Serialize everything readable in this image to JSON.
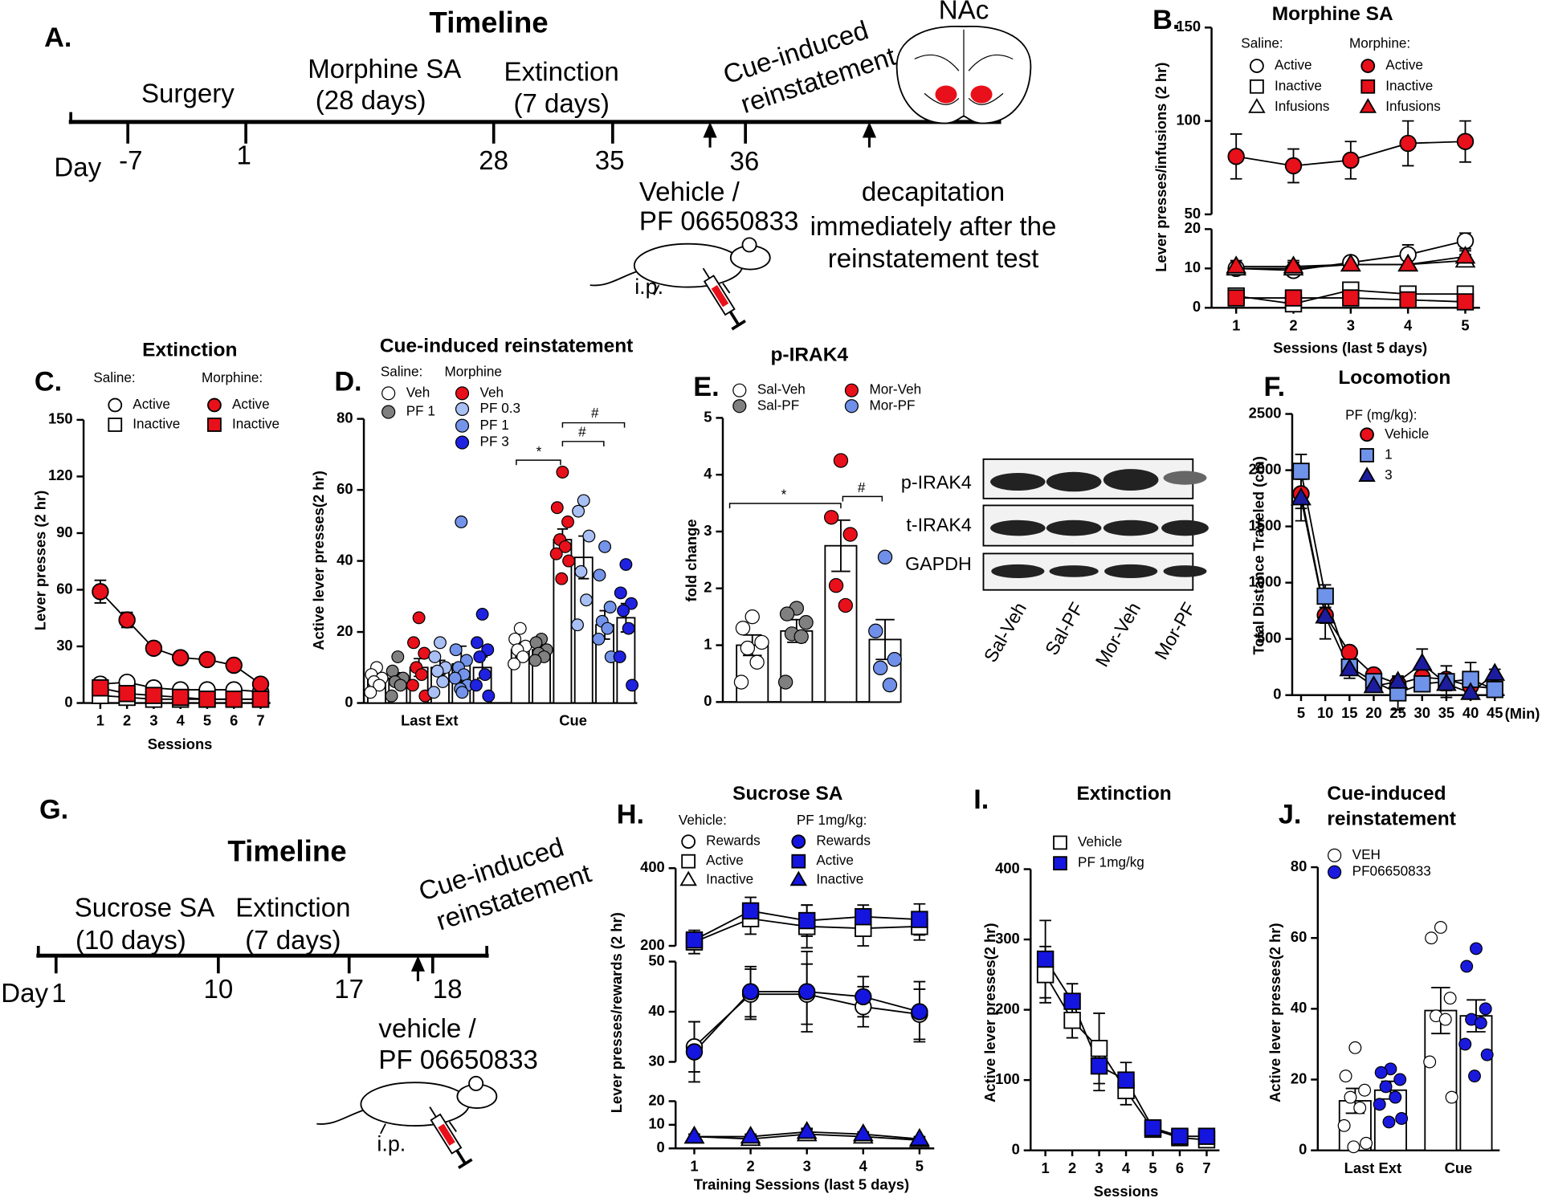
{
  "timelines": [
    {
      "panel_label": "A.",
      "title": "Timeline",
      "day_label": "Day",
      "days": [
        -7,
        1,
        28,
        35,
        36
      ],
      "phases": [
        [
          "Surgery"
        ],
        [
          "Morphine SA",
          "(28 days)"
        ],
        [
          "Extinction",
          "(7 days)"
        ]
      ],
      "test": [
        "Cue-induced",
        "reinstatement"
      ],
      "region": "NAc",
      "treatment": [
        "Vehicle /",
        "PF 06650833"
      ],
      "route": "i.p.",
      "endpoint": [
        "decapitation",
        "immediately after the",
        "reinstatement test"
      ]
    },
    {
      "panel_label": "G.",
      "title": "Timeline",
      "day_label": "Day",
      "days": [
        1,
        10,
        17,
        18
      ],
      "phases": [
        [
          "Sucrose SA",
          "(10 days)"
        ],
        [
          "Extinction",
          "(7 days)"
        ]
      ],
      "test": [
        "Cue-induced",
        "reinstatement"
      ],
      "treatment": [
        "vehicle /",
        "PF 06650833"
      ],
      "route": "i.p."
    }
  ],
  "blot": {
    "rows": [
      "p-IRAK4",
      "t-IRAK4",
      "GAPDH"
    ],
    "lanes": [
      "Sal-Veh",
      "Sal-PF",
      "Mor-Veh",
      "Mor-PF"
    ]
  },
  "chart_data": [
    {
      "type": "line",
      "panel_label": "B.",
      "title": "Morphine SA",
      "ylabel": "Lever presses/infusions (2 hr)",
      "xlabel": "Sessions (last 5 days)",
      "categories": [
        1,
        2,
        3,
        4,
        5
      ],
      "ysegments": [
        {
          "ylim": [
            0,
            20
          ],
          "yticks": [
            0,
            10,
            20
          ]
        },
        {
          "ylim": [
            50,
            150
          ],
          "yticks": [
            50,
            100,
            150
          ]
        }
      ],
      "legend_titles": [
        "Saline:",
        "Morphine:"
      ],
      "series": [
        {
          "name": "Active",
          "marker": "circle",
          "color": "#ffffff",
          "values": [
            10,
            9.5,
            11.5,
            13.5,
            17
          ],
          "errors": [
            1.5,
            1.5,
            1.5,
            2.5,
            2
          ]
        },
        {
          "name": "Inactive",
          "marker": "square",
          "color": "#ffffff",
          "values": [
            3,
            1,
            4.5,
            3.5,
            3.5
          ],
          "errors": [
            1,
            1,
            1.5,
            1,
            1
          ]
        },
        {
          "name": "Infusions",
          "marker": "triangle",
          "color": "#ffffff",
          "values": [
            10,
            10,
            11,
            11,
            12
          ],
          "errors": [
            1.5,
            1.5,
            1.5,
            1.5,
            1.5
          ]
        },
        {
          "name": "Active",
          "marker": "circle",
          "color": "#e8101a",
          "values": [
            81,
            76,
            79,
            88,
            89
          ],
          "errors": [
            12,
            9,
            10,
            12,
            11
          ]
        },
        {
          "name": "Inactive",
          "marker": "square",
          "color": "#e8101a",
          "values": [
            2.5,
            2.5,
            2.5,
            2,
            1.5
          ],
          "errors": [
            1,
            1,
            1,
            1,
            1
          ]
        },
        {
          "name": "Infusions",
          "marker": "triangle",
          "color": "#e8101a",
          "values": [
            10.5,
            10.5,
            11,
            11,
            13
          ],
          "errors": [
            1.5,
            1.5,
            1.5,
            1.5,
            1.5
          ]
        }
      ]
    },
    {
      "type": "line",
      "panel_label": "C.",
      "title": "Extinction",
      "ylabel": "Lever presses (2 hr)",
      "xlabel": "Sessions",
      "categories": [
        1,
        2,
        3,
        4,
        5,
        6,
        7
      ],
      "ylim": [
        0,
        150
      ],
      "yticks": [
        0,
        30,
        60,
        90,
        120,
        150
      ],
      "legend_titles": [
        "Saline:",
        "Morphine:"
      ],
      "series": [
        {
          "name": "Active",
          "marker": "circle",
          "color": "#ffffff",
          "values": [
            10,
            11,
            8,
            7,
            7,
            7,
            6
          ],
          "errors": [
            2,
            2,
            2,
            1.5,
            1,
            1,
            1
          ]
        },
        {
          "name": "Inactive",
          "marker": "square",
          "color": "#ffffff",
          "values": [
            4,
            3,
            2,
            2,
            2,
            2,
            2
          ],
          "errors": [
            1,
            1,
            1,
            1,
            1,
            1,
            1
          ]
        },
        {
          "name": "Active",
          "marker": "circle",
          "color": "#e8101a",
          "values": [
            59,
            44,
            29,
            24,
            23,
            20,
            10
          ],
          "errors": [
            6,
            4,
            3,
            3,
            2,
            2,
            2
          ]
        },
        {
          "name": "Inactive",
          "marker": "square",
          "color": "#e8101a",
          "values": [
            8,
            5,
            4,
            3,
            2,
            2,
            2
          ],
          "errors": [
            2,
            2,
            1.5,
            1,
            1,
            1,
            1
          ]
        }
      ]
    },
    {
      "type": "bar",
      "panel_label": "D.",
      "title": "Cue-induced reinstatement",
      "ylabel": "Active lever presses(2 hr)",
      "categories": [
        "Last Ext",
        "Cue"
      ],
      "ylim": [
        0,
        80
      ],
      "yticks": [
        0,
        20,
        40,
        60,
        80
      ],
      "legend_titles": [
        "Saline:",
        "Morphine"
      ],
      "annotations": [
        "*",
        "#",
        "#"
      ],
      "series": [
        {
          "name": "Veh",
          "color": "#ffffff",
          "values": [
            7,
            15
          ],
          "errors": [
            1,
            2
          ],
          "points": [
            [
              10,
              8,
              7,
              6,
              5,
              3
            ],
            [
              21,
              18,
              16,
              15,
              13,
              11
            ]
          ]
        },
        {
          "name": "PF 1",
          "color": "#808080",
          "values": [
            7,
            15
          ],
          "errors": [
            1.5,
            1
          ],
          "points": [
            [
              13,
              9,
              7,
              6,
              5,
              2
            ],
            [
              18,
              17,
              15,
              14,
              13,
              12
            ]
          ]
        },
        {
          "name": "Veh",
          "color": "#e8101a",
          "values": [
            10,
            46
          ],
          "errors": [
            2.5,
            3
          ],
          "points": [
            [
              24,
              17,
              14,
              10,
              8,
              5,
              2
            ],
            [
              65,
              55,
              51,
              46,
              44,
              42,
              40,
              35
            ]
          ]
        },
        {
          "name": "PF 0.3",
          "color": "#a9c0f5",
          "values": [
            10,
            41
          ],
          "errors": [
            2,
            6
          ],
          "points": [
            [
              17,
              13,
              10,
              9,
              6,
              3
            ],
            [
              57,
              54,
              47,
              37,
              29,
              22
            ]
          ]
        },
        {
          "name": "PF 1",
          "color": "#7394ea",
          "values": [
            11,
            22
          ],
          "errors": [
            5,
            4
          ],
          "points": [
            [
              51,
              15,
              12,
              10,
              8,
              7,
              5,
              4,
              3
            ],
            [
              44,
              36,
              27,
              23,
              21,
              18,
              13
            ]
          ]
        },
        {
          "name": "PF 3",
          "color": "#1f22e0",
          "values": [
            10,
            24
          ],
          "errors": [
            3,
            4
          ],
          "points": [
            [
              25,
              17,
              15,
              13,
              8,
              5,
              2
            ],
            [
              39,
              31,
              28,
              26,
              21,
              13,
              5
            ]
          ]
        }
      ]
    },
    {
      "type": "bar",
      "panel_label": "E.",
      "title": "p-IRAK4",
      "ylabel": "fold change",
      "ylim": [
        0,
        5
      ],
      "yticks": [
        0,
        1,
        2,
        3,
        4,
        5
      ],
      "annotations": [
        "*",
        "#"
      ],
      "series": [
        {
          "name": "Sal-Veh",
          "color": "#ffffff",
          "values": [
            1.0
          ],
          "errors": [
            0.18
          ],
          "points": [
            [
              1.5,
              1.3,
              1.05,
              0.95,
              0.7,
              0.35
            ]
          ]
        },
        {
          "name": "Sal-PF",
          "color": "#808080",
          "values": [
            1.25
          ],
          "errors": [
            0.2
          ],
          "points": [
            [
              1.65,
              1.55,
              1.4,
              1.2,
              1.15,
              0.35
            ]
          ]
        },
        {
          "name": "Mor-Veh",
          "color": "#e8101a",
          "values": [
            2.75
          ],
          "errors": [
            0.45
          ],
          "points": [
            [
              4.25,
              3.25,
              2.95,
              2.05,
              1.7
            ]
          ]
        },
        {
          "name": "Mor-PF",
          "color": "#6f8fe8",
          "values": [
            1.1
          ],
          "errors": [
            0.35
          ],
          "points": [
            [
              2.55,
              1.25,
              0.75,
              0.6,
              0.3
            ]
          ]
        }
      ]
    },
    {
      "type": "line",
      "panel_label": "F.",
      "title": "Locomotion",
      "ylabel": "Total Distance Traveled (cm)",
      "xlabel": "(Min)",
      "categories": [
        5,
        10,
        15,
        20,
        25,
        30,
        35,
        40,
        45
      ],
      "ylim": [
        0,
        2500
      ],
      "yticks": [
        0,
        500,
        1000,
        1500,
        2000,
        2500
      ],
      "legend_title": "PF (mg/kg):",
      "series": [
        {
          "name": "Vehicle",
          "marker": "circle",
          "color": "#e8101a",
          "values": [
            1790,
            710,
            380,
            180,
            100,
            160,
            140,
            80,
            60
          ],
          "errors": [
            130,
            70,
            40,
            40,
            30,
            40,
            30,
            30,
            20
          ]
        },
        {
          "name": "1",
          "marker": "square",
          "color": "#6f93e8",
          "values": [
            1990,
            880,
            250,
            120,
            20,
            100,
            120,
            140,
            50
          ],
          "errors": [
            150,
            100,
            60,
            40,
            150,
            60,
            140,
            150,
            50
          ]
        },
        {
          "name": "3",
          "marker": "triangle",
          "color": "#1c1c9e",
          "values": [
            1750,
            700,
            230,
            80,
            120,
            280,
            100,
            20,
            190
          ],
          "errors": [
            200,
            200,
            80,
            40,
            40,
            130,
            60,
            40,
            40
          ]
        }
      ]
    },
    {
      "type": "line",
      "panel_label": "H.",
      "title": "Sucrose SA",
      "ylabel": "Lever presses/rewards (2 hr)",
      "xlabel": "Training Sessions (last 5 days)",
      "categories": [
        1,
        2,
        3,
        4,
        5
      ],
      "ysegments": [
        {
          "ylim": [
            0,
            20
          ],
          "yticks": [
            0,
            10,
            20
          ]
        },
        {
          "ylim": [
            30,
            50
          ],
          "yticks": [
            30,
            40,
            50
          ]
        },
        {
          "ylim": [
            200,
            400
          ],
          "yticks": [
            200,
            400
          ]
        }
      ],
      "legend_titles": [
        "Vehicle:",
        "PF 1mg/kg:"
      ],
      "series": [
        {
          "name": "Rewards",
          "marker": "circle",
          "color": "#ffffff",
          "values": [
            33,
            43.5,
            43.5,
            41,
            39.5
          ],
          "errors": [
            5,
            5,
            6,
            4,
            5
          ]
        },
        {
          "name": "Active",
          "marker": "square",
          "color": "#ffffff",
          "values": [
            210,
            270,
            250,
            245,
            250
          ],
          "errors": [
            30,
            40,
            55,
            45,
            35
          ]
        },
        {
          "name": "Inactive",
          "marker": "triangle",
          "color": "#ffffff",
          "values": [
            5,
            4,
            6,
            5,
            3.5
          ],
          "errors": [
            1,
            1.5,
            2,
            1.5,
            1
          ]
        },
        {
          "name": "Rewards",
          "marker": "circle",
          "color": "#1515e0",
          "values": [
            32,
            44,
            44,
            43,
            40
          ],
          "errors": [
            6,
            5,
            8,
            4,
            6
          ]
        },
        {
          "name": "Active",
          "marker": "square",
          "color": "#1515e0",
          "values": [
            215,
            290,
            265,
            275,
            268
          ],
          "errors": [
            20,
            35,
            40,
            30,
            40
          ]
        },
        {
          "name": "Inactive",
          "marker": "triangle",
          "color": "#1515e0",
          "values": [
            5,
            5,
            7,
            6,
            4
          ],
          "errors": [
            1,
            1,
            1.5,
            1,
            1
          ]
        }
      ]
    },
    {
      "type": "line",
      "panel_label": "I.",
      "title": "Extinction",
      "ylabel": "Active lever presses(2 hr)",
      "xlabel": "Sessions",
      "categories": [
        1,
        2,
        3,
        4,
        5,
        6,
        7
      ],
      "ylim": [
        0,
        400
      ],
      "yticks": [
        0,
        100,
        200,
        300,
        400
      ],
      "series": [
        {
          "name": "Vehicle",
          "marker": "square",
          "color": "#ffffff",
          "values": [
            250,
            185,
            145,
            85,
            30,
            18,
            15
          ],
          "errors": [
            40,
            25,
            50,
            20,
            5,
            5,
            5
          ]
        },
        {
          "name": "PF 1mg/kg",
          "marker": "square",
          "color": "#1515e0",
          "values": [
            272,
            212,
            120,
            100,
            32,
            20,
            20
          ],
          "errors": [
            55,
            25,
            35,
            25,
            5,
            5,
            5
          ]
        }
      ]
    },
    {
      "type": "bar",
      "panel_label": "J.",
      "title": [
        "Cue-induced",
        "reinstatement"
      ],
      "ylabel": "Active lever presses(2 hr)",
      "categories": [
        "Last Ext",
        "Cue"
      ],
      "ylim": [
        0,
        80
      ],
      "yticks": [
        0,
        20,
        40,
        60,
        80
      ],
      "series": [
        {
          "name": "VEH",
          "color": "#ffffff",
          "values": [
            14,
            39.5
          ],
          "errors": [
            3.5,
            6.5
          ],
          "points": [
            [
              29,
              21,
              17,
              15,
              12,
              7,
              2,
              1
            ],
            [
              63,
              60,
              43,
              38,
              37,
              25,
              15
            ]
          ]
        },
        {
          "name": "PF06650833",
          "color": "#1a1adf",
          "values": [
            17,
            38
          ],
          "errors": [
            2.5,
            4.5
          ],
          "points": [
            [
              23,
              22,
              20,
              18,
              15,
              13,
              9,
              8
            ],
            [
              57,
              52,
              40,
              37,
              36,
              30,
              27,
              21
            ]
          ]
        }
      ]
    }
  ]
}
